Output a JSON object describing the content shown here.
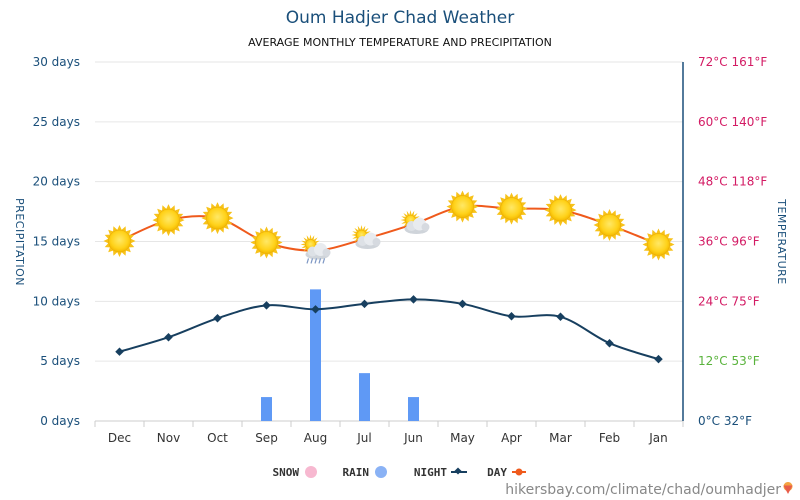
{
  "chart_data": {
    "type": "line",
    "title": "Oum Hadjer Chad Weather",
    "subtitle": "AVERAGE MONTHLY TEMPERATURE AND PRECIPITATION",
    "ylabel_left": "PRECIPITATION",
    "ylabel_right": "TEMPERATURE",
    "categories": [
      "Jan",
      "Feb",
      "Mar",
      "Apr",
      "May",
      "Jun",
      "Jul",
      "Aug",
      "Sep",
      "Oct",
      "Nov",
      "Dec"
    ],
    "left_axis": {
      "ylim": [
        0,
        30
      ],
      "ticks": [
        0,
        5,
        10,
        15,
        20,
        25,
        30
      ],
      "tick_labels": [
        "0 days",
        "5 days",
        "10 days",
        "15 days",
        "20 days",
        "25 days",
        "30 days"
      ]
    },
    "right_axis": {
      "ylim_celsius": [
        0,
        72
      ],
      "tick_labels": [
        "0°C 32°F",
        "12°C 53°F",
        "24°C 75°F",
        "36°C 96°F",
        "48°C 118°F",
        "60°C 140°F",
        "72°C 161°F"
      ]
    },
    "series": [
      {
        "name": "DAY",
        "axis": "right",
        "unit": "°C",
        "color": "#ef5a1c",
        "values": [
          35.4,
          39.3,
          42.3,
          42.6,
          43,
          39.5,
          36.5,
          34.2,
          35.8,
          40.7,
          40.3,
          36.1
        ],
        "icons": [
          "sun",
          "sun",
          "sun",
          "sun",
          "sun",
          "sun-cloud",
          "sun-cloud",
          "sun-cloud-rain",
          "sun",
          "sun",
          "sun",
          "sun"
        ]
      },
      {
        "name": "NIGHT",
        "axis": "right",
        "unit": "°C",
        "color": "#173f5f",
        "values": [
          12.4,
          15.6,
          20.9,
          21,
          23.5,
          24.4,
          23.5,
          22.4,
          23.2,
          20.6,
          16.8,
          13.9
        ]
      },
      {
        "name": "RAIN",
        "axis": "left",
        "unit": "days",
        "type": "bar",
        "color": "#5f99f5",
        "values": [
          0,
          0,
          0,
          0,
          0,
          2,
          4,
          11,
          2,
          0,
          0,
          0
        ]
      },
      {
        "name": "SNOW",
        "axis": "left",
        "unit": "days",
        "type": "bar",
        "color": "#f7b8d0",
        "values": [
          0,
          0,
          0,
          0,
          0,
          0,
          0,
          0,
          0,
          0,
          0,
          0
        ]
      }
    ],
    "grid": true,
    "legend": "bottom-center"
  },
  "legend": {
    "day": "DAY",
    "night": "NIGHT",
    "rain": "RAIN",
    "snow": "SNOW"
  },
  "colors": {
    "day": "#ef5a1c",
    "night": "#173f5f",
    "rain": "#5f99f5",
    "snow": "#f7b8d0",
    "left_axis_text": "#1a4f7a",
    "hot_label": "#d31b64",
    "cool_label": "#59b33c",
    "cold_label": "#1a4f7a"
  },
  "source": "hikersbay.com/climate/chad/oumhadjer"
}
